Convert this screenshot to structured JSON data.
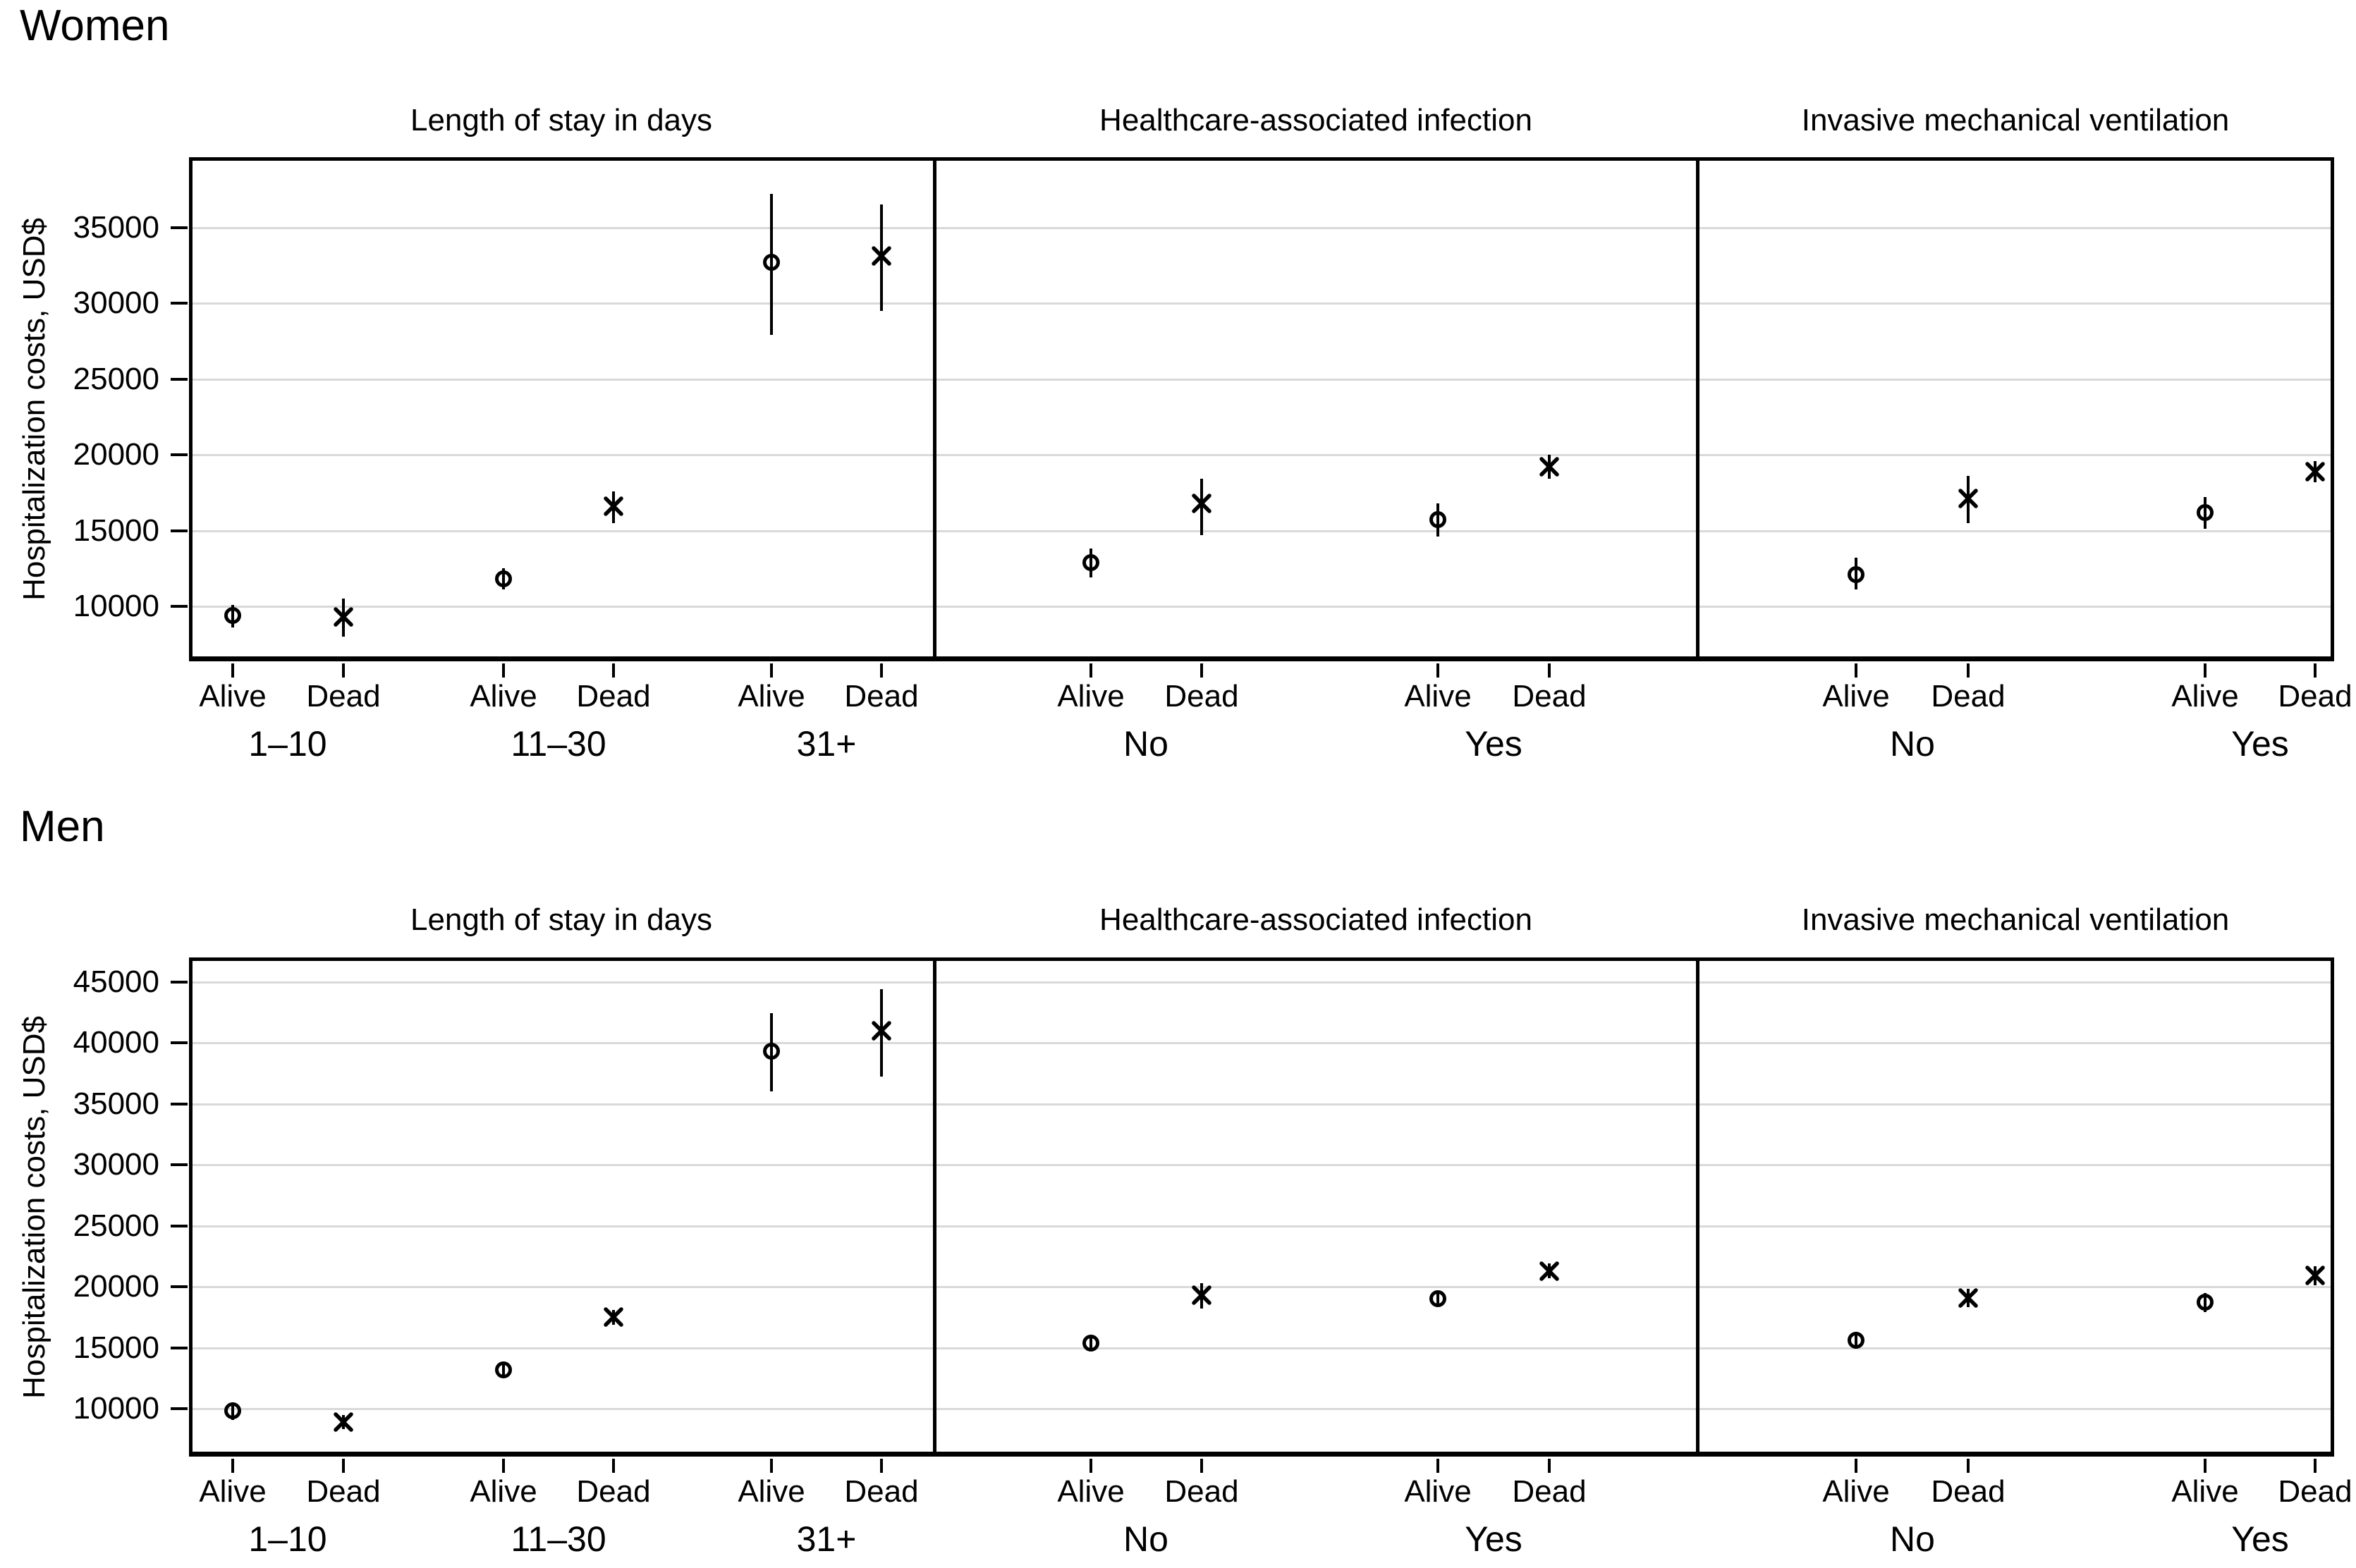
{
  "chart_data": [
    {
      "id": "women",
      "type": "scatter",
      "title": "Women",
      "ylabel": "Hospitalization costs, USD$",
      "ylim": [
        6300,
        39700
      ],
      "yticks": [
        35000,
        30000,
        25000,
        20000,
        15000,
        10000
      ],
      "grid": "horizontal",
      "legend": {
        "circle_marker": "Alive",
        "x_marker": "Dead"
      },
      "panels": [
        {
          "title": "Length of stay in days",
          "groups": [
            {
              "label": "1–10",
              "points": [
                {
                  "outcome": "Alive",
                  "marker": "circle",
                  "est": 9400,
                  "ci": [
                    8600,
                    10100
                  ]
                },
                {
                  "outcome": "Dead",
                  "marker": "x",
                  "est": 9300,
                  "ci": [
                    8000,
                    10500
                  ]
                }
              ]
            },
            {
              "label": "11–30",
              "points": [
                {
                  "outcome": "Alive",
                  "marker": "circle",
                  "est": 11800,
                  "ci": [
                    11100,
                    12500
                  ]
                },
                {
                  "outcome": "Dead",
                  "marker": "x",
                  "est": 16600,
                  "ci": [
                    15500,
                    17600
                  ]
                }
              ]
            },
            {
              "label": "31+",
              "points": [
                {
                  "outcome": "Alive",
                  "marker": "circle",
                  "est": 32700,
                  "ci": [
                    27900,
                    37200
                  ]
                },
                {
                  "outcome": "Dead",
                  "marker": "x",
                  "est": 33100,
                  "ci": [
                    29500,
                    36500
                  ]
                }
              ]
            }
          ]
        },
        {
          "title": "Healthcare-associated infection",
          "groups": [
            {
              "label": "No",
              "points": [
                {
                  "outcome": "Alive",
                  "marker": "circle",
                  "est": 12900,
                  "ci": [
                    11900,
                    13800
                  ]
                },
                {
                  "outcome": "Dead",
                  "marker": "x",
                  "est": 16800,
                  "ci": [
                    14700,
                    18400
                  ]
                }
              ]
            },
            {
              "label": "Yes",
              "points": [
                {
                  "outcome": "Alive",
                  "marker": "circle",
                  "est": 15700,
                  "ci": [
                    14600,
                    16800
                  ]
                },
                {
                  "outcome": "Dead",
                  "marker": "x",
                  "est": 19200,
                  "ci": [
                    18400,
                    20000
                  ]
                }
              ]
            }
          ]
        },
        {
          "title": "Invasive mechanical ventilation",
          "groups": [
            {
              "label": "No",
              "points": [
                {
                  "outcome": "Alive",
                  "marker": "circle",
                  "est": 12100,
                  "ci": [
                    11100,
                    13200
                  ]
                },
                {
                  "outcome": "Dead",
                  "marker": "x",
                  "est": 17100,
                  "ci": [
                    15500,
                    18600
                  ]
                }
              ]
            },
            {
              "label": "Yes",
              "points": [
                {
                  "outcome": "Alive",
                  "marker": "circle",
                  "est": 16200,
                  "ci": [
                    15100,
                    17200
                  ]
                },
                {
                  "outcome": "Dead",
                  "marker": "x",
                  "est": 18900,
                  "ci": [
                    18200,
                    19600
                  ]
                }
              ]
            }
          ]
        }
      ]
    },
    {
      "id": "men",
      "type": "scatter",
      "title": "Men",
      "ylabel": "Hospitalization costs, USD$",
      "ylim": [
        6000,
        47000
      ],
      "yticks": [
        45000,
        40000,
        35000,
        30000,
        25000,
        20000,
        15000,
        10000
      ],
      "grid": "horizontal",
      "legend": {
        "circle_marker": "Alive",
        "x_marker": "Dead"
      },
      "panels": [
        {
          "title": "Length of stay in days",
          "groups": [
            {
              "label": "1–10",
              "points": [
                {
                  "outcome": "Alive",
                  "marker": "circle",
                  "est": 9800,
                  "ci": [
                    9100,
                    10500
                  ]
                },
                {
                  "outcome": "Dead",
                  "marker": "x",
                  "est": 8900,
                  "ci": [
                    8300,
                    9500
                  ]
                }
              ]
            },
            {
              "label": "11–30",
              "points": [
                {
                  "outcome": "Alive",
                  "marker": "circle",
                  "est": 13200,
                  "ci": [
                    12700,
                    13700
                  ]
                },
                {
                  "outcome": "Dead",
                  "marker": "x",
                  "est": 17500,
                  "ci": [
                    16900,
                    18100
                  ]
                }
              ]
            },
            {
              "label": "31+",
              "points": [
                {
                  "outcome": "Alive",
                  "marker": "circle",
                  "est": 39300,
                  "ci": [
                    36000,
                    42400
                  ]
                },
                {
                  "outcome": "Dead",
                  "marker": "x",
                  "est": 41000,
                  "ci": [
                    37200,
                    44400
                  ]
                }
              ]
            }
          ]
        },
        {
          "title": "Healthcare-associated infection",
          "groups": [
            {
              "label": "No",
              "points": [
                {
                  "outcome": "Alive",
                  "marker": "circle",
                  "est": 15400,
                  "ci": [
                    14800,
                    16000
                  ]
                },
                {
                  "outcome": "Dead",
                  "marker": "x",
                  "est": 19300,
                  "ci": [
                    18200,
                    20300
                  ]
                }
              ]
            },
            {
              "label": "Yes",
              "points": [
                {
                  "outcome": "Alive",
                  "marker": "circle",
                  "est": 19000,
                  "ci": [
                    18400,
                    19600
                  ]
                },
                {
                  "outcome": "Dead",
                  "marker": "x",
                  "est": 21300,
                  "ci": [
                    20700,
                    21900
                  ]
                }
              ]
            }
          ]
        },
        {
          "title": "Invasive mechanical ventilation",
          "groups": [
            {
              "label": "No",
              "points": [
                {
                  "outcome": "Alive",
                  "marker": "circle",
                  "est": 15600,
                  "ci": [
                    14900,
                    16300
                  ]
                },
                {
                  "outcome": "Dead",
                  "marker": "x",
                  "est": 19100,
                  "ci": [
                    18300,
                    19800
                  ]
                }
              ]
            },
            {
              "label": "Yes",
              "points": [
                {
                  "outcome": "Alive",
                  "marker": "circle",
                  "est": 18700,
                  "ci": [
                    17900,
                    19500
                  ]
                },
                {
                  "outcome": "Dead",
                  "marker": "x",
                  "est": 20900,
                  "ci": [
                    20100,
                    21700
                  ]
                }
              ]
            }
          ]
        }
      ]
    }
  ]
}
